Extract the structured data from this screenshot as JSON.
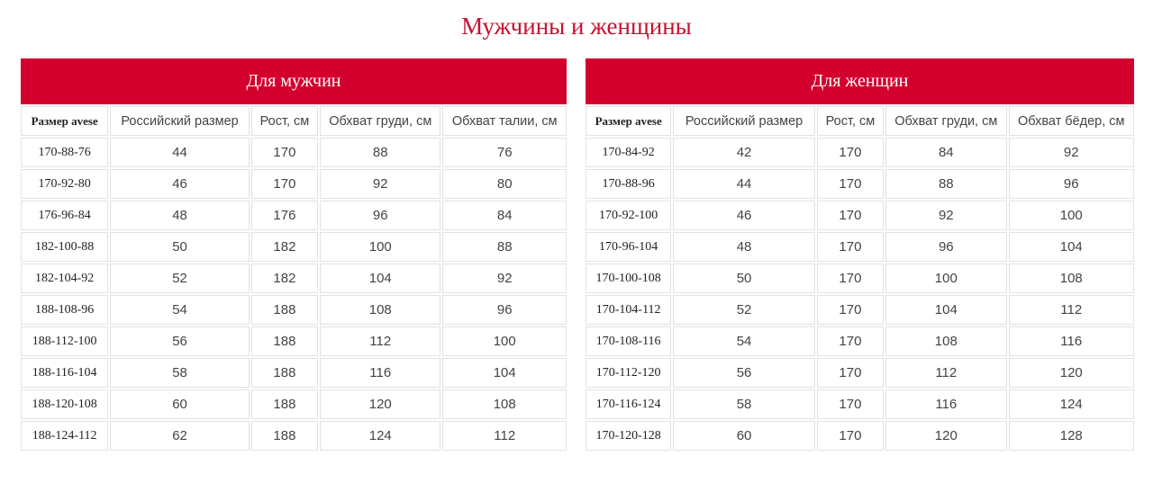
{
  "title": "Мужчины и женщины",
  "men": {
    "banner": "Для мужчин",
    "headers": [
      "Размер avese",
      "Российский размер",
      "Рост, см",
      "Обхват груди, см",
      "Обхват талии, см"
    ],
    "rows": [
      [
        "170-88-76",
        "44",
        "170",
        "88",
        "76"
      ],
      [
        "170-92-80",
        "46",
        "170",
        "92",
        "80"
      ],
      [
        "176-96-84",
        "48",
        "176",
        "96",
        "84"
      ],
      [
        "182-100-88",
        "50",
        "182",
        "100",
        "88"
      ],
      [
        "182-104-92",
        "52",
        "182",
        "104",
        "92"
      ],
      [
        "188-108-96",
        "54",
        "188",
        "108",
        "96"
      ],
      [
        "188-112-100",
        "56",
        "188",
        "112",
        "100"
      ],
      [
        "188-116-104",
        "58",
        "188",
        "116",
        "104"
      ],
      [
        "188-120-108",
        "60",
        "188",
        "120",
        "108"
      ],
      [
        "188-124-112",
        "62",
        "188",
        "124",
        "112"
      ]
    ]
  },
  "women": {
    "banner": "Для женщин",
    "headers": [
      "Размер avese",
      "Российский размер",
      "Рост, см",
      "Обхват груди, см",
      "Обхват бёдер, см"
    ],
    "rows": [
      [
        "170-84-92",
        "42",
        "170",
        "84",
        "92"
      ],
      [
        "170-88-96",
        "44",
        "170",
        "88",
        "96"
      ],
      [
        "170-92-100",
        "46",
        "170",
        "92",
        "100"
      ],
      [
        "170-96-104",
        "48",
        "170",
        "96",
        "104"
      ],
      [
        "170-100-108",
        "50",
        "170",
        "100",
        "108"
      ],
      [
        "170-104-112",
        "52",
        "170",
        "104",
        "112"
      ],
      [
        "170-108-116",
        "54",
        "170",
        "108",
        "116"
      ],
      [
        "170-112-120",
        "56",
        "170",
        "112",
        "120"
      ],
      [
        "170-116-124",
        "58",
        "170",
        "116",
        "124"
      ],
      [
        "170-120-128",
        "60",
        "170",
        "120",
        "128"
      ]
    ]
  },
  "colors": {
    "accent": "#d3002d",
    "title": "#c8102e",
    "border": "#e2e2e2"
  }
}
